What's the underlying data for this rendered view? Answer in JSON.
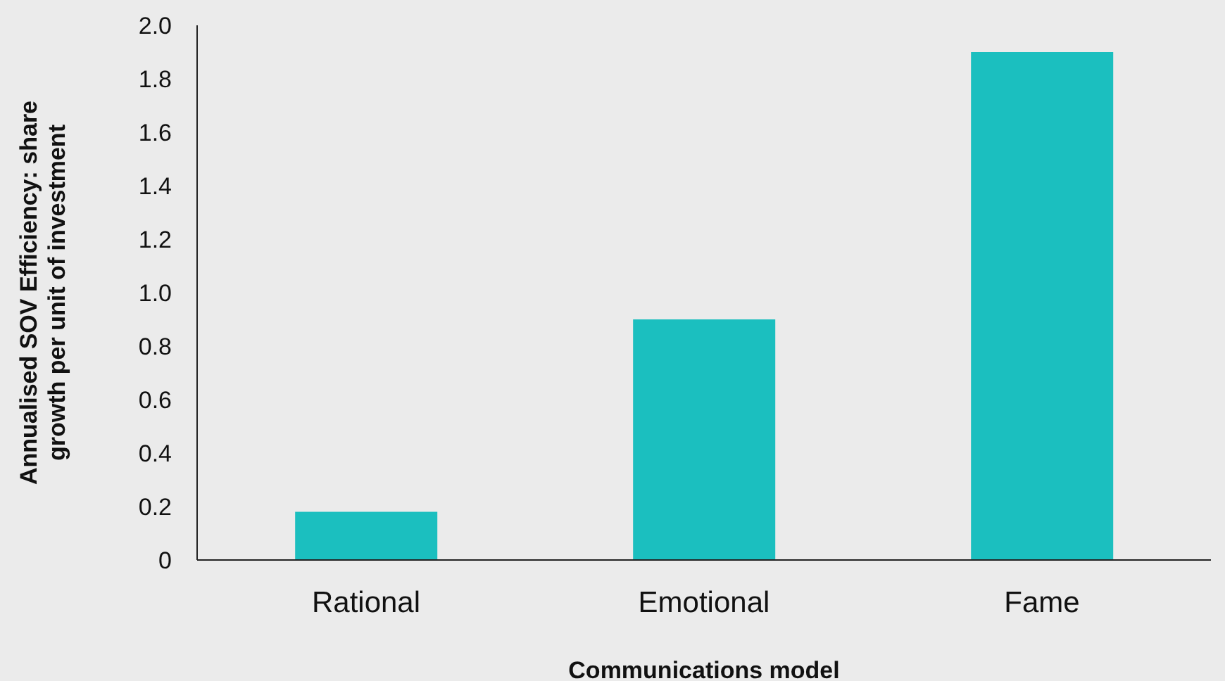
{
  "chart_data": {
    "type": "bar",
    "xlabel": "Communications model",
    "ylabel": "Annualised SOV Efficiency: share growth per unit of investment",
    "categories": [
      "Rational",
      "Emotional",
      "Fame"
    ],
    "values": [
      0.18,
      0.9,
      1.9
    ],
    "color": "#1bbfbf",
    "ylim": [
      0,
      2
    ],
    "yticks": [
      0,
      0.2,
      0.4,
      0.6,
      0.8,
      {
        "value": 1,
        "label": "1.0"
      },
      1.2,
      1.4,
      1.6,
      1.8,
      {
        "value": 2,
        "label": "2.0"
      }
    ],
    "grid": false
  }
}
